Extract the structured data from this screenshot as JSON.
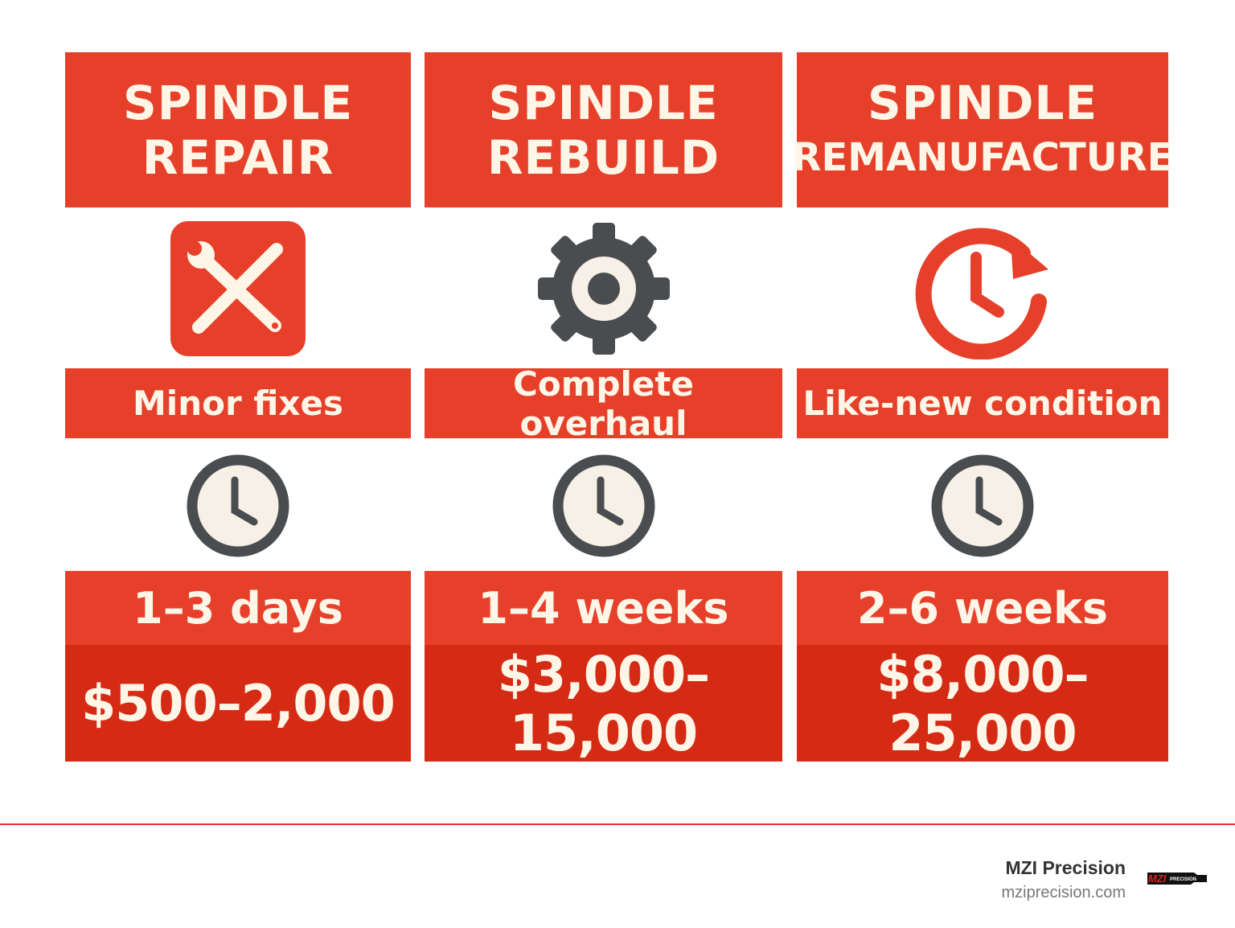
{
  "columns": [
    {
      "title_line1": "SPINDLE",
      "title_line2": "REPAIR",
      "icon": "wrench-screwdriver-icon",
      "description": "Minor fixes",
      "timeframe": "1–3 days",
      "cost": "$500–2,000"
    },
    {
      "title_line1": "SPINDLE",
      "title_line2": "REBUILD",
      "icon": "gear-icon",
      "description": "Complete overhaul",
      "timeframe": "1–4 weeks",
      "cost": "$3,000–15,000"
    },
    {
      "title_line1": "SPINDLE",
      "title_line2": "REMANUFACTURE",
      "icon": "clock-refresh-icon",
      "description": "Like-new condition",
      "timeframe": "2–6 weeks",
      "cost": "$8,000–25,000"
    }
  ],
  "footer": {
    "brand": "MZI Precision",
    "url": "mziprecision.com",
    "logo_text": "MZI PRECISION"
  },
  "colors": {
    "accent": "#E6402A",
    "price_band": "#D52B15",
    "text": "#FFF6E8",
    "dark_icon": "#4A4D50"
  }
}
